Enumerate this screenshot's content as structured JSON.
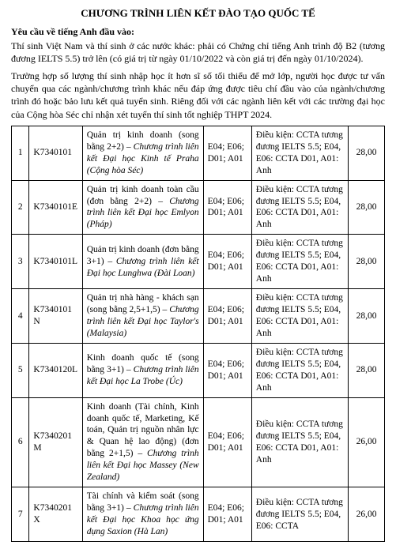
{
  "title": "CHƯƠNG TRÌNH LIÊN KẾT ĐÀO TẠO QUỐC TẾ",
  "subhead": "Yêu cầu về tiếng Anh đầu vào:",
  "para1": "Thí sinh Việt Nam và thí sinh ở các nước khác: phải có Chứng chỉ tiếng Anh trình độ B2 (tương đương IELTS 5.5) trở lên (có giá trị từ ngày 01/10/2022 và còn giá trị đến ngày 01/10/2024).",
  "para2": "Trường hợp số lượng thí sinh nhập học ít hơn sĩ số tối thiểu để mở lớp, người học được tư vấn chuyển qua các ngành/chương trình khác nếu đáp ứng được tiêu chí đầu vào của ngành/chương trình đó hoặc bảo lưu kết quả tuyển sinh. Riêng đối với các ngành liên kết với các trường đại học của Cộng hòa Séc chỉ nhận xét tuyển thí sinh tốt nghiệp THPT 2024.",
  "subjects_common": "E04; E06; D01; A01",
  "rows": [
    {
      "num": "1",
      "code": "K7340101",
      "desc_plain": "Quản trị kinh doanh (song bằng 2+2) – ",
      "desc_ital": "Chương trình liên kết Đại học Kinh tế Praha (Cộng hòa Séc)",
      "cond": "Điều kiện: CCTA tương đương IELTS 5.5; E04, E06: CCTA D01, A01: Anh",
      "score": "28,00"
    },
    {
      "num": "2",
      "code": "K7340101E",
      "desc_plain": "Quản trị kinh doanh toàn cầu (đơn bằng 2+2) – ",
      "desc_ital": "Chương trình liên kết Đại học Emlyon (Pháp)",
      "cond": "Điều kiện: CCTA tương đương IELTS 5.5; E04, E06: CCTA D01, A01: Anh",
      "score": "28,00"
    },
    {
      "num": "3",
      "code": "K7340101L",
      "desc_plain": "Quản trị kinh doanh (đơn bằng 3+1) – ",
      "desc_ital": "Chương trình liên kết Đại học Lunghwa (Đài Loan)",
      "cond": "Điều kiện: CCTA tương đương IELTS 5.5; E04, E06: CCTA D01, A01: Anh",
      "score": "28,00"
    },
    {
      "num": "4",
      "code": "K7340101N",
      "desc_plain": "Quản trị nhà hàng - khách sạn (song bằng 2,5+1,5) – ",
      "desc_ital": "Chương trình liên kết Đại học Taylor's (Malaysia)",
      "cond": "Điều kiện: CCTA tương đương IELTS 5.5; E04, E06: CCTA D01, A01: Anh",
      "score": "28,00"
    },
    {
      "num": "5",
      "code": "K7340120L",
      "desc_plain": "Kinh doanh quốc tế (song bằng 3+1) – ",
      "desc_ital": "Chương trình liên kết Đại học La Trobe (Úc)",
      "cond": "Điều kiện: CCTA tương đương IELTS 5.5; E04, E06: CCTA D01, A01: Anh",
      "score": "28,00"
    },
    {
      "num": "6",
      "code": "K7340201M",
      "desc_plain": "Kinh doanh (Tài chính, Kinh doanh quốc tế, Marketing, Kế toán, Quản trị nguồn nhân lực & Quan hệ lao động) (đơn bằng 2+1,5) – ",
      "desc_ital": "Chương trình liên kết Đại học Massey (New Zealand)",
      "cond": "Điều kiện: CCTA tương đương IELTS 5.5; E04, E06: CCTA D01, A01: Anh",
      "score": "26,00"
    },
    {
      "num": "7",
      "code": "K7340201X",
      "desc_plain": "Tài chính và kiểm soát (song bằng 3+1) – ",
      "desc_ital": "Chương trình liên kết Đại học Khoa học ứng dụng Saxion (Hà Lan)",
      "cond": "Điều kiện: CCTA tương đương IELTS 5.5; E04, E06: CCTA",
      "score": "26,00"
    }
  ]
}
